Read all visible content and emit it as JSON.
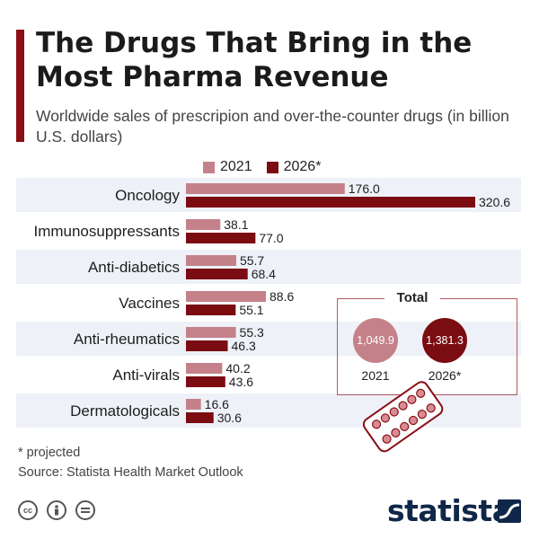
{
  "title": "The Drugs That Bring in the Most Pharma Revenue",
  "subtitle": "Worldwide sales of prescripion and over-the-counter drugs (in billion U.S. dollars)",
  "colors": {
    "accent": "#8a0f16",
    "series_2021": "#c4818a",
    "series_2026": "#7a0c12",
    "band": "#eef1f7"
  },
  "chart_data": {
    "type": "bar",
    "orientation": "horizontal",
    "categories": [
      "Oncology",
      "Immunosuppressants",
      "Anti-diabetics",
      "Vaccines",
      "Anti-rheumatics",
      "Anti-virals",
      "Dermatologicals"
    ],
    "series": [
      {
        "name": "2021",
        "values": [
          176.0,
          38.1,
          55.7,
          88.6,
          55.3,
          40.2,
          16.6
        ],
        "labels": [
          "176.0",
          "38.1",
          "55.7",
          "88.6",
          "55.3",
          "40.2",
          "16.6"
        ]
      },
      {
        "name": "2026*",
        "values": [
          320.6,
          77.0,
          68.4,
          55.1,
          46.3,
          43.6,
          30.6
        ],
        "labels": [
          "320.6",
          "77.0",
          "68.4",
          "55.1",
          "46.3",
          "43.6",
          "30.6"
        ]
      }
    ],
    "xlim": [
      0,
      320.6
    ],
    "legend_position": "top",
    "grid": false
  },
  "totals": {
    "label": "Total",
    "items": [
      {
        "year": "2021",
        "value": "1,049.9"
      },
      {
        "year": "2026*",
        "value": "1,381.3"
      }
    ]
  },
  "footnote": "* projected",
  "source": "Source: Statista Health Market Outlook",
  "brand": "statista",
  "license_icons": [
    "cc-icon",
    "attribution-icon",
    "no-derivatives-icon"
  ]
}
